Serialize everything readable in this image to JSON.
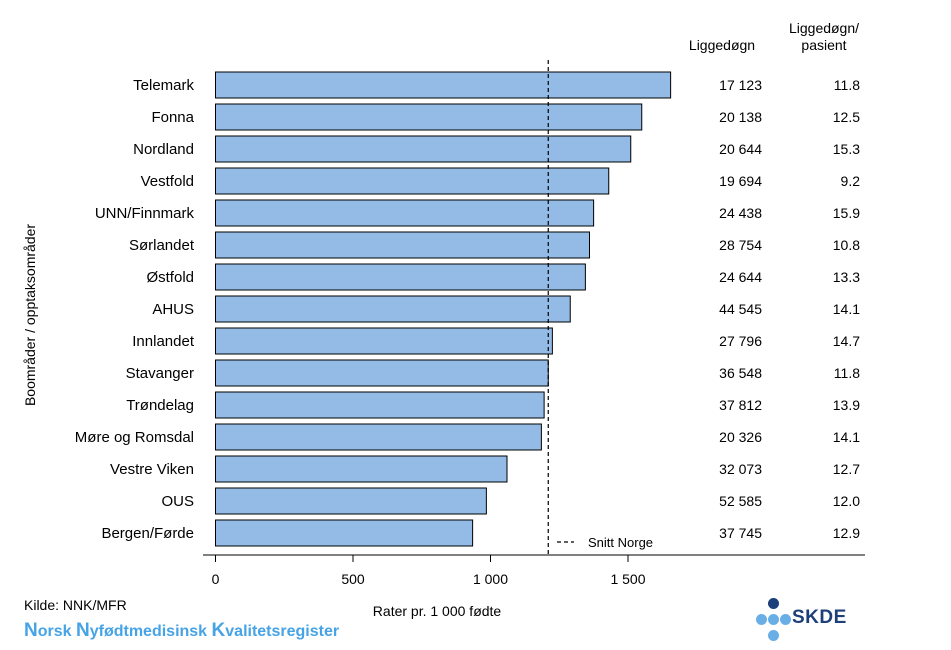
{
  "chart_data": {
    "type": "bar",
    "orientation": "horizontal",
    "categories": [
      "Telemark",
      "Fonna",
      "Nordland",
      "Vestfold",
      "UNN/Finnmark",
      "Sørlandet",
      "Østfold",
      "AHUS",
      "Innlandet",
      "Stavanger",
      "Trøndelag",
      "Møre og Romsdal",
      "Vestre Viken",
      "OUS",
      "Bergen/Førde"
    ],
    "values": [
      1655,
      1550,
      1510,
      1430,
      1375,
      1360,
      1345,
      1290,
      1225,
      1210,
      1195,
      1185,
      1060,
      985,
      935
    ],
    "reference_line": {
      "value": 1210,
      "label": "Snitt Norge"
    },
    "xlabel": "Rater pr. 1 000 fødte",
    "ylabel": "Boområder / opptaksområder",
    "xlim": [
      0,
      1650
    ],
    "xticks": [
      0,
      500,
      1000,
      1500
    ],
    "xtick_labels": [
      "0",
      "500",
      "1 000",
      "1 500"
    ],
    "bar_color": "#94bbe6",
    "grid": false,
    "table": {
      "headers": [
        "Liggedøgn",
        "Liggedøgn/\npasient"
      ],
      "header1": "Liggedøgn",
      "header2_line1": "Liggedøgn/",
      "header2_line2": "pasient",
      "liggedogn": [
        "17 123",
        "20 138",
        "20 644",
        "19 694",
        "24 438",
        "28 754",
        "24 644",
        "44 545",
        "27 796",
        "36 548",
        "37 812",
        "20 326",
        "32 073",
        "52 585",
        "37 745"
      ],
      "per_pasient": [
        "11.8",
        "12.5",
        "15.3",
        "9.2",
        "15.9",
        "10.8",
        "13.3",
        "14.1",
        "14.7",
        "11.8",
        "13.9",
        "14.1",
        "12.7",
        "12.0",
        "12.9"
      ]
    }
  },
  "footer": {
    "source": "Kilde: NNK/MFR",
    "register": [
      {
        "big": "N",
        "rest": "orsk "
      },
      {
        "big": "N",
        "rest": "yfødtmedisinsk "
      },
      {
        "big": "K",
        "rest": "valitetsregister"
      }
    ],
    "logo_text": "SKDE",
    "logo_colors": {
      "dark": "#1d3f7a",
      "light": "#6aaee6"
    }
  }
}
